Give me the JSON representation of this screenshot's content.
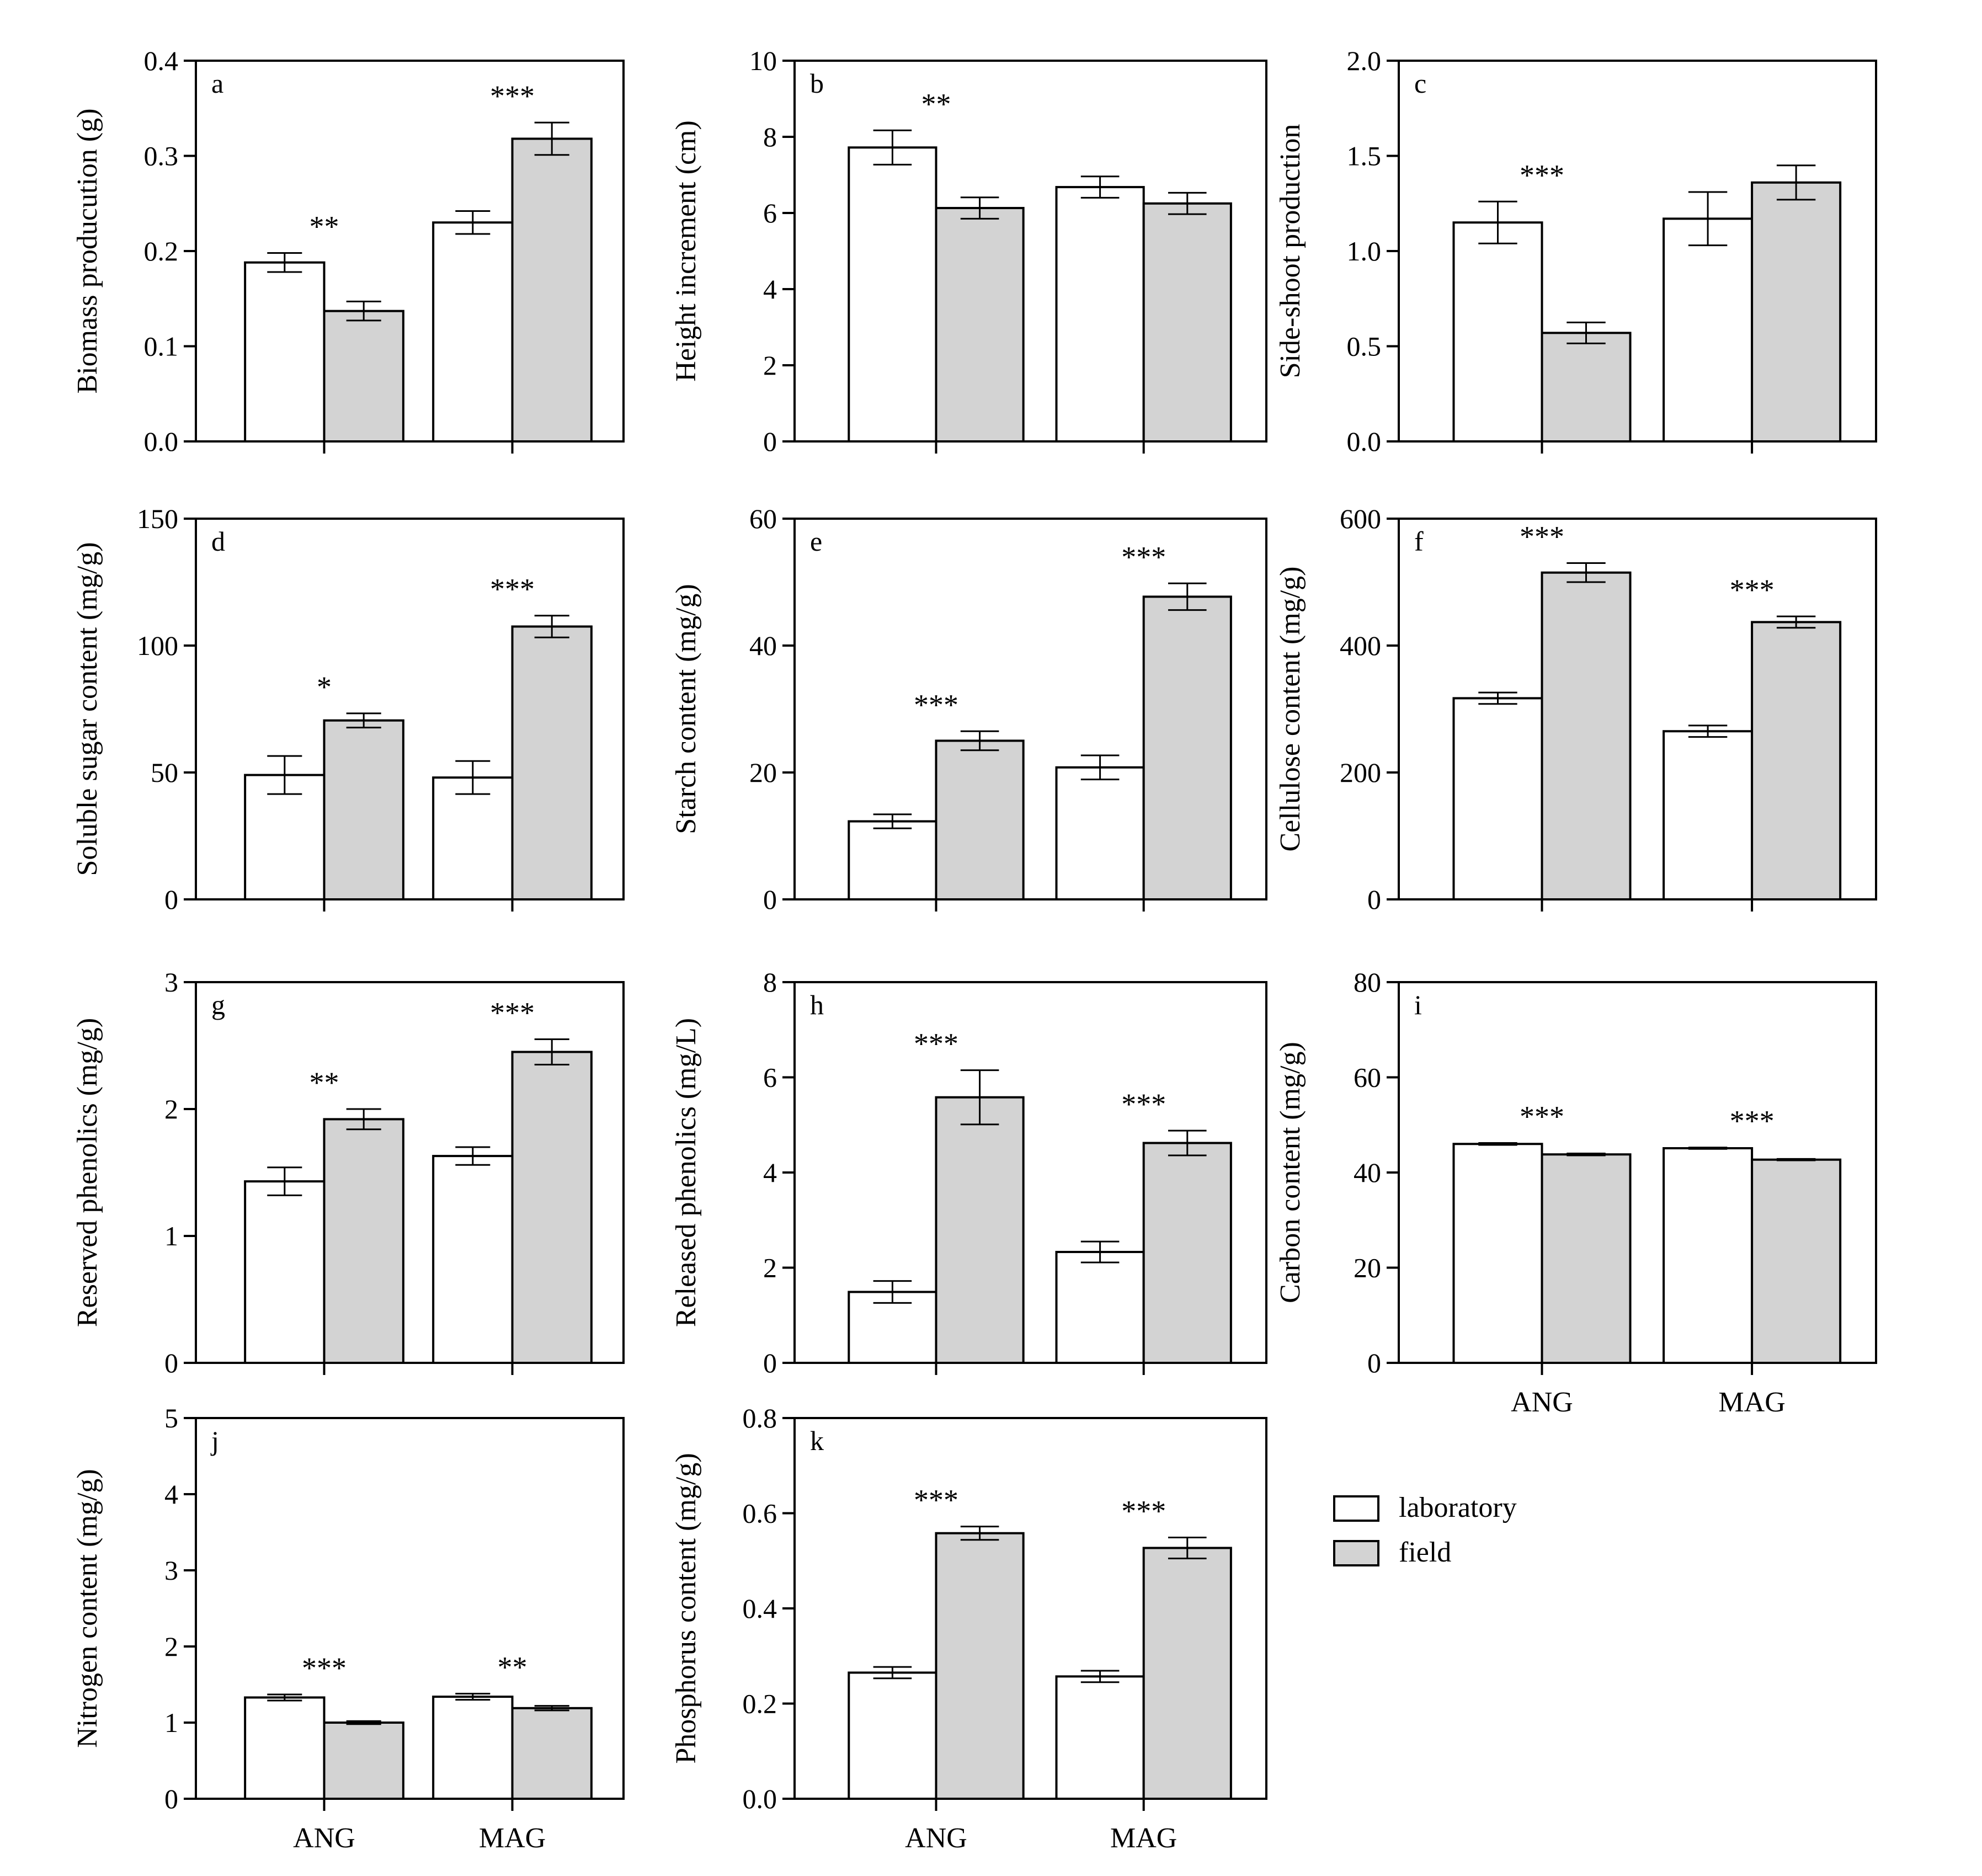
{
  "legend": {
    "items": [
      {
        "label": "laboratory",
        "color": "#ffffff"
      },
      {
        "label": "field",
        "color": "#d3d3d3"
      }
    ]
  },
  "chart_data": [
    {
      "type": "bar",
      "panel": "a",
      "ylabel": "Biomass producution  (g)",
      "yticks": [
        "0.0",
        "0.1",
        "0.2",
        "0.3",
        "0.4"
      ],
      "ylim": [
        0,
        0.4
      ],
      "categories": [
        "ANG",
        "MAG"
      ],
      "show_xticklabels": false,
      "series": [
        {
          "name": "laboratory",
          "values": [
            0.188,
            0.23
          ],
          "errors": [
            0.01,
            0.012
          ]
        },
        {
          "name": "field",
          "values": [
            0.137,
            0.318
          ],
          "errors": [
            0.01,
            0.017
          ]
        }
      ],
      "significance": [
        "**",
        "***"
      ]
    },
    {
      "type": "bar",
      "panel": "b",
      "ylabel": "Height increment (cm)",
      "yticks": [
        "0",
        "2",
        "4",
        "6",
        "8",
        "10"
      ],
      "ylim": [
        0,
        10
      ],
      "categories": [
        "ANG",
        "MAG"
      ],
      "show_xticklabels": false,
      "series": [
        {
          "name": "laboratory",
          "values": [
            7.72,
            6.68
          ],
          "errors": [
            0.45,
            0.28
          ]
        },
        {
          "name": "field",
          "values": [
            6.13,
            6.25
          ],
          "errors": [
            0.28,
            0.28
          ]
        }
      ],
      "significance": [
        "**",
        ""
      ]
    },
    {
      "type": "bar",
      "panel": "c",
      "ylabel": "Side-shoot production",
      "yticks": [
        "0.0",
        "0.5",
        "1.0",
        "1.5",
        "2.0"
      ],
      "ylim": [
        0,
        2.0
      ],
      "categories": [
        "ANG",
        "MAG"
      ],
      "show_xticklabels": false,
      "series": [
        {
          "name": "laboratory",
          "values": [
            1.15,
            1.17
          ],
          "errors": [
            0.11,
            0.14
          ]
        },
        {
          "name": "field",
          "values": [
            0.57,
            1.36
          ],
          "errors": [
            0.055,
            0.09
          ]
        }
      ],
      "significance": [
        "***",
        ""
      ]
    },
    {
      "type": "bar",
      "panel": "d",
      "ylabel": "Soluble sugar content (mg/g)",
      "yticks": [
        "0",
        "50",
        "100",
        "150"
      ],
      "ylim": [
        0,
        150
      ],
      "categories": [
        "ANG",
        "MAG"
      ],
      "show_xticklabels": false,
      "series": [
        {
          "name": "laboratory",
          "values": [
            49,
            48
          ],
          "errors": [
            7.5,
            6.5
          ]
        },
        {
          "name": "field",
          "values": [
            70.5,
            107.5
          ],
          "errors": [
            2.8,
            4.3
          ]
        }
      ],
      "significance": [
        "*",
        "***"
      ]
    },
    {
      "type": "bar",
      "panel": "e",
      "ylabel": "Starch content (mg/g)",
      "yticks": [
        "0",
        "20",
        "40",
        "60"
      ],
      "ylim": [
        0,
        60
      ],
      "categories": [
        "ANG",
        "MAG"
      ],
      "show_xticklabels": false,
      "series": [
        {
          "name": "laboratory",
          "values": [
            12.3,
            20.8
          ],
          "errors": [
            1.1,
            1.9
          ]
        },
        {
          "name": "field",
          "values": [
            25.0,
            47.7
          ],
          "errors": [
            1.5,
            2.1
          ]
        }
      ],
      "significance": [
        "***",
        "***"
      ]
    },
    {
      "type": "bar",
      "panel": "f",
      "ylabel": "Cellulose content (mg/g)",
      "yticks": [
        "0",
        "200",
        "400",
        "600"
      ],
      "ylim": [
        0,
        600
      ],
      "categories": [
        "ANG",
        "MAG"
      ],
      "show_xticklabels": false,
      "series": [
        {
          "name": "laboratory",
          "values": [
            317,
            265
          ],
          "errors": [
            9,
            9
          ]
        },
        {
          "name": "field",
          "values": [
            515,
            437
          ],
          "errors": [
            15,
            9
          ]
        }
      ],
      "significance": [
        "***",
        "***"
      ]
    },
    {
      "type": "bar",
      "panel": "g",
      "ylabel": "Reserved  phenolics (mg/g)",
      "yticks": [
        "0",
        "1",
        "2",
        "3"
      ],
      "ylim": [
        0,
        3
      ],
      "categories": [
        "ANG",
        "MAG"
      ],
      "show_xticklabels": false,
      "series": [
        {
          "name": "laboratory",
          "values": [
            1.43,
            1.63
          ],
          "errors": [
            0.11,
            0.07
          ]
        },
        {
          "name": "field",
          "values": [
            1.92,
            2.45
          ],
          "errors": [
            0.08,
            0.1
          ]
        }
      ],
      "significance": [
        "**",
        "***"
      ]
    },
    {
      "type": "bar",
      "panel": "h",
      "ylabel": "Released  phenolics (mg/L)",
      "yticks": [
        "0",
        "2",
        "4",
        "6",
        "8"
      ],
      "ylim": [
        0,
        8
      ],
      "categories": [
        "ANG",
        "MAG"
      ],
      "show_xticklabels": false,
      "series": [
        {
          "name": "laboratory",
          "values": [
            1.49,
            2.33
          ],
          "errors": [
            0.23,
            0.22
          ]
        },
        {
          "name": "field",
          "values": [
            5.58,
            4.62
          ],
          "errors": [
            0.57,
            0.26
          ]
        }
      ],
      "significance": [
        "***",
        "***"
      ]
    },
    {
      "type": "bar",
      "panel": "i",
      "ylabel": "Carbon content (mg/g)",
      "yticks": [
        "0",
        "20",
        "40",
        "60",
        "80"
      ],
      "ylim": [
        0,
        80
      ],
      "categories": [
        "ANG",
        "MAG"
      ],
      "show_xticklabels": true,
      "series": [
        {
          "name": "laboratory",
          "values": [
            46.0,
            45.1
          ],
          "errors": [
            0.2,
            0.15
          ]
        },
        {
          "name": "field",
          "values": [
            43.8,
            42.7
          ],
          "errors": [
            0.2,
            0.15
          ]
        }
      ],
      "significance": [
        "***",
        "***"
      ]
    },
    {
      "type": "bar",
      "panel": "j",
      "ylabel": "Nitrogen content (mg/g)",
      "yticks": [
        "0",
        "1",
        "2",
        "3",
        "4",
        "5"
      ],
      "ylim": [
        0,
        5
      ],
      "categories": [
        "ANG",
        "MAG"
      ],
      "show_xticklabels": true,
      "series": [
        {
          "name": "laboratory",
          "values": [
            1.33,
            1.34
          ],
          "errors": [
            0.04,
            0.04
          ]
        },
        {
          "name": "field",
          "values": [
            1.0,
            1.19
          ],
          "errors": [
            0.02,
            0.03
          ]
        }
      ],
      "significance": [
        "***",
        "**"
      ]
    },
    {
      "type": "bar",
      "panel": "k",
      "ylabel": "Phosphorus content (mg/g)",
      "yticks": [
        "0.0",
        "0.2",
        "0.4",
        "0.6",
        "0.8"
      ],
      "ylim": [
        0,
        0.8
      ],
      "categories": [
        "ANG",
        "MAG"
      ],
      "show_xticklabels": true,
      "series": [
        {
          "name": "laboratory",
          "values": [
            0.265,
            0.257
          ],
          "errors": [
            0.012,
            0.012
          ]
        },
        {
          "name": "field",
          "values": [
            0.558,
            0.527
          ],
          "errors": [
            0.014,
            0.022
          ]
        }
      ],
      "significance": [
        "***",
        "***"
      ]
    }
  ]
}
